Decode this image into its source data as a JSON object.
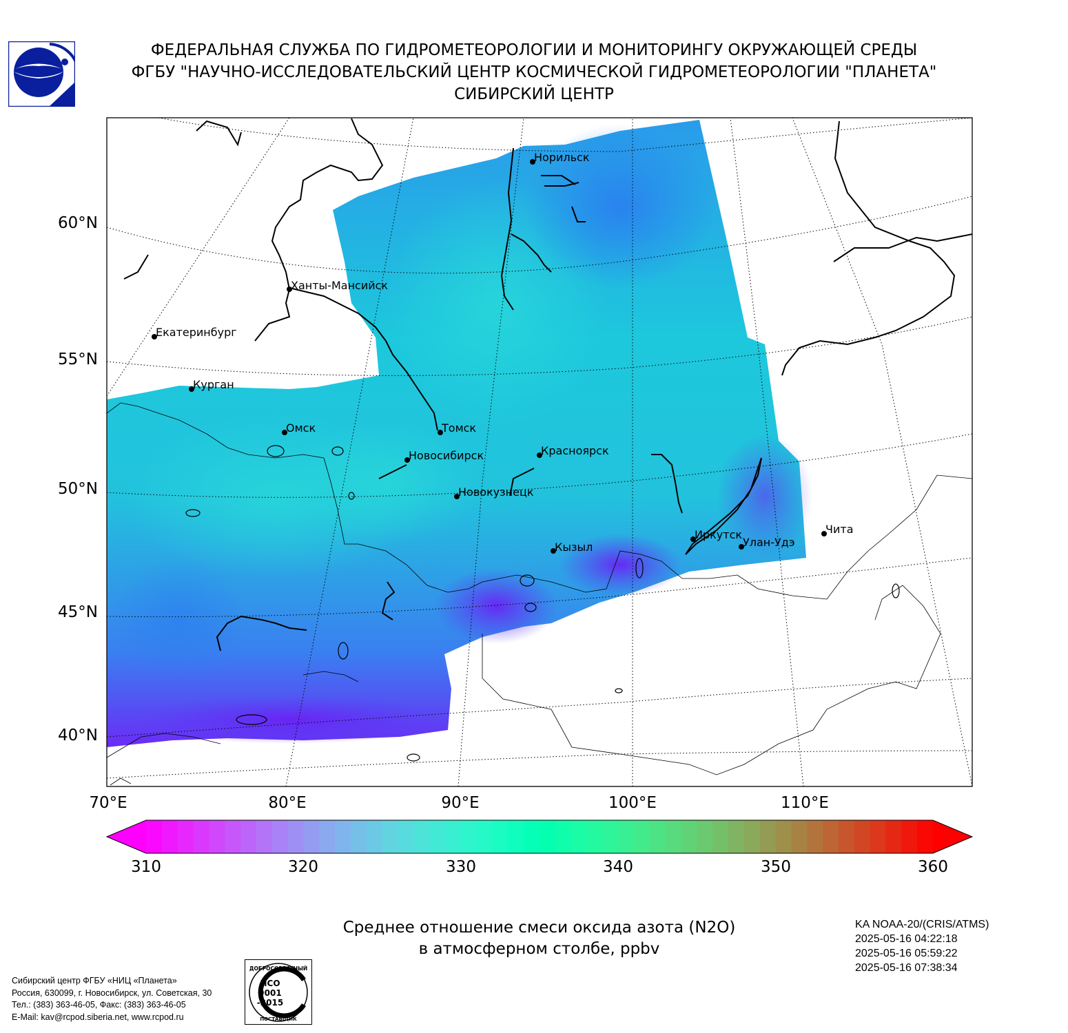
{
  "header": {
    "line1": "ФЕДЕРАЛЬНАЯ СЛУЖБА ПО ГИДРОМЕТЕОРОЛОГИИ И МОНИТОРИНГУ ОКРУЖАЮЩЕЙ СРЕДЫ",
    "line2": "ФГБУ \"НАУЧНО-ИССЛЕДОВАТЕЛЬСКИЙ ЦЕНТР КОСМИЧЕСКОЙ ГИДРОМЕТЕОРОЛОГИИ \"ПЛАНЕТА\"",
    "line3": "СИБИРСКИЙ ЦЕНТР"
  },
  "map": {
    "lat_labels": [
      "60°N",
      "55°N",
      "50°N",
      "45°N",
      "40°N"
    ],
    "lon_labels": [
      "70°E",
      "80°E",
      "90°E",
      "100°E",
      "110°E"
    ],
    "cities": [
      {
        "name": "Норильск"
      },
      {
        "name": "Ханты-Мансийск"
      },
      {
        "name": "Екатеринбург"
      },
      {
        "name": "Курган"
      },
      {
        "name": "Омск"
      },
      {
        "name": "Томск"
      },
      {
        "name": "Новосибирск"
      },
      {
        "name": "Красноярск"
      },
      {
        "name": "Новокузнецк"
      },
      {
        "name": "Иркутск"
      },
      {
        "name": "Улан-Удэ"
      },
      {
        "name": "Чита"
      },
      {
        "name": "Кызыл"
      }
    ]
  },
  "colorbar": {
    "min": 310,
    "max": 360,
    "ticks": [
      "310",
      "320",
      "330",
      "340",
      "350",
      "360"
    ],
    "colormap": "rainbow",
    "extend": "both"
  },
  "title": {
    "line1": "Среднее отношение смеси оксида азота (N2O)",
    "line2": "в атмосферном столбе, ppbv"
  },
  "satellite": {
    "name": "KA NOAA-20/(CRIS/ATMS)",
    "times": [
      "2025-05-16 04:22:18",
      "2025-05-16 05:59:22",
      "2025-05-16 07:38:34"
    ]
  },
  "contacts": {
    "line1": "Сибирский центр ФГБУ «НИЦ «Планета»",
    "line2": "Россия, 630099, г. Новосибирск, ул. Советская, 30",
    "line3": "Тел.: (383) 363-46-05, Факс: (383) 363-46-05",
    "line4": "E-Mail: kav@rcpod.siberia.net, www.rcpod.ru"
  },
  "iso_badge": {
    "top_text": "ДОБРОСОВЕСТНЫЙ",
    "code1": "ИСО",
    "code2": "9001",
    "code3": "-2015",
    "bottom_text": "ПОСТАВЩИК"
  },
  "colors": {
    "frame": "#000000",
    "logo_blue": "#0a1f9e"
  }
}
